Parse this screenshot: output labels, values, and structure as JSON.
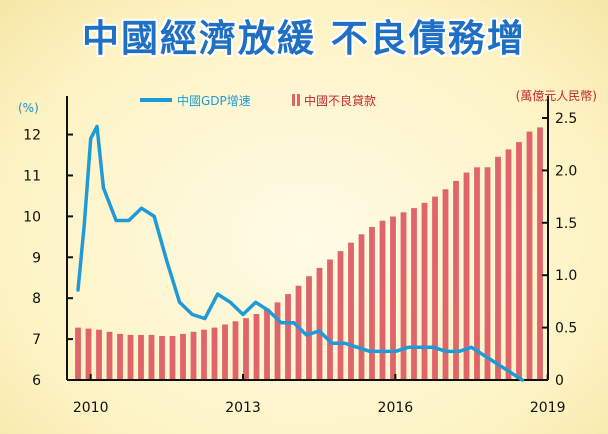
{
  "title": "中國經濟放緩 不良債務增",
  "chart_data": {
    "type": "bar+line",
    "y_left_unit": "(%)",
    "y_right_unit": "(萬億元人民幣)",
    "y_left_range": [
      6,
      12.6
    ],
    "y_left_ticks": [
      "6",
      "7",
      "8",
      "9",
      "10",
      "11",
      "12"
    ],
    "y_right_range": [
      0,
      2.5
    ],
    "y_right_ticks": [
      "0",
      "0.5",
      "1.0",
      "1.5",
      "2.0",
      "2.5"
    ],
    "x_ticks": [
      {
        "label": "2010",
        "t": 1
      },
      {
        "label": "2013",
        "t": 13
      },
      {
        "label": "2016",
        "t": 25
      },
      {
        "label": "2019",
        "t": 37
      }
    ],
    "legend": {
      "line": "中國GDP增速",
      "bar": "中國不良貸款"
    },
    "colors": {
      "line": "#1e9bd7",
      "bar": "#e0656b",
      "axis": "#111111"
    },
    "gdp_growth": {
      "name": "中國GDP增速",
      "points": [
        [
          0,
          8.2
        ],
        [
          0.5,
          9.8
        ],
        [
          1,
          11.9
        ],
        [
          1.5,
          12.2
        ],
        [
          2,
          10.7
        ],
        [
          3,
          9.9
        ],
        [
          4,
          9.9
        ],
        [
          5,
          10.2
        ],
        [
          6,
          10.0
        ],
        [
          7,
          8.9
        ],
        [
          8,
          7.9
        ],
        [
          9,
          7.6
        ],
        [
          10,
          7.5
        ],
        [
          11,
          8.1
        ],
        [
          12,
          7.9
        ],
        [
          13,
          7.6
        ],
        [
          14,
          7.9
        ],
        [
          15,
          7.7
        ],
        [
          16,
          7.4
        ],
        [
          17,
          7.4
        ],
        [
          18,
          7.1
        ],
        [
          19,
          7.2
        ],
        [
          20,
          6.9
        ],
        [
          21,
          6.9
        ],
        [
          22,
          6.8
        ],
        [
          23,
          6.7
        ],
        [
          24,
          6.7
        ],
        [
          25,
          6.7
        ],
        [
          26,
          6.8
        ],
        [
          27,
          6.8
        ],
        [
          28,
          6.8
        ],
        [
          29,
          6.7
        ],
        [
          30,
          6.7
        ],
        [
          31,
          6.8
        ],
        [
          32,
          6.6
        ],
        [
          33,
          6.4
        ],
        [
          34,
          6.2
        ],
        [
          35,
          6.0
        ]
      ]
    },
    "npl": {
      "name": "中國不良貸款",
      "values": [
        0.5,
        0.49,
        0.48,
        0.46,
        0.44,
        0.43,
        0.43,
        0.43,
        0.42,
        0.42,
        0.44,
        0.46,
        0.48,
        0.5,
        0.53,
        0.56,
        0.59,
        0.63,
        0.68,
        0.74,
        0.82,
        0.9,
        0.99,
        1.07,
        1.15,
        1.23,
        1.31,
        1.39,
        1.46,
        1.52,
        1.56,
        1.6,
        1.64,
        1.69,
        1.75,
        1.82,
        1.9,
        1.98,
        2.03,
        2.03,
        2.13,
        2.2,
        2.27,
        2.37,
        2.41
      ]
    }
  }
}
